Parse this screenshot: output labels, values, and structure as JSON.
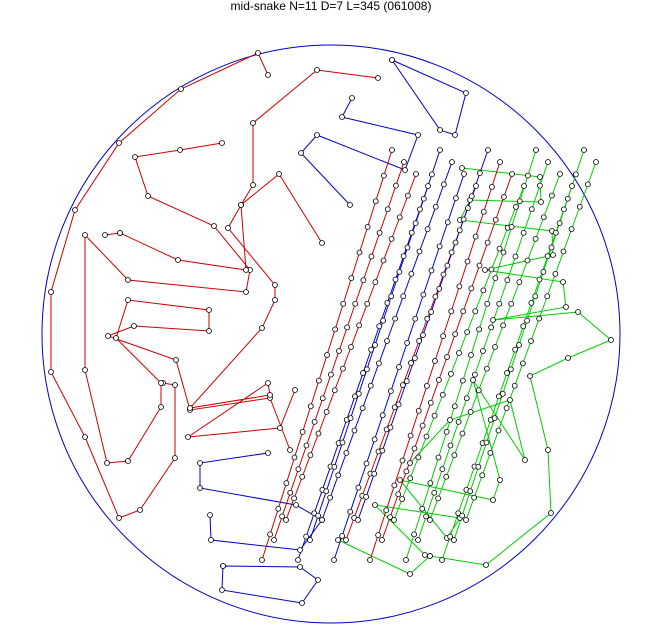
{
  "title": "mid-snake N=11 D=7 L=345 (061008)"
}
